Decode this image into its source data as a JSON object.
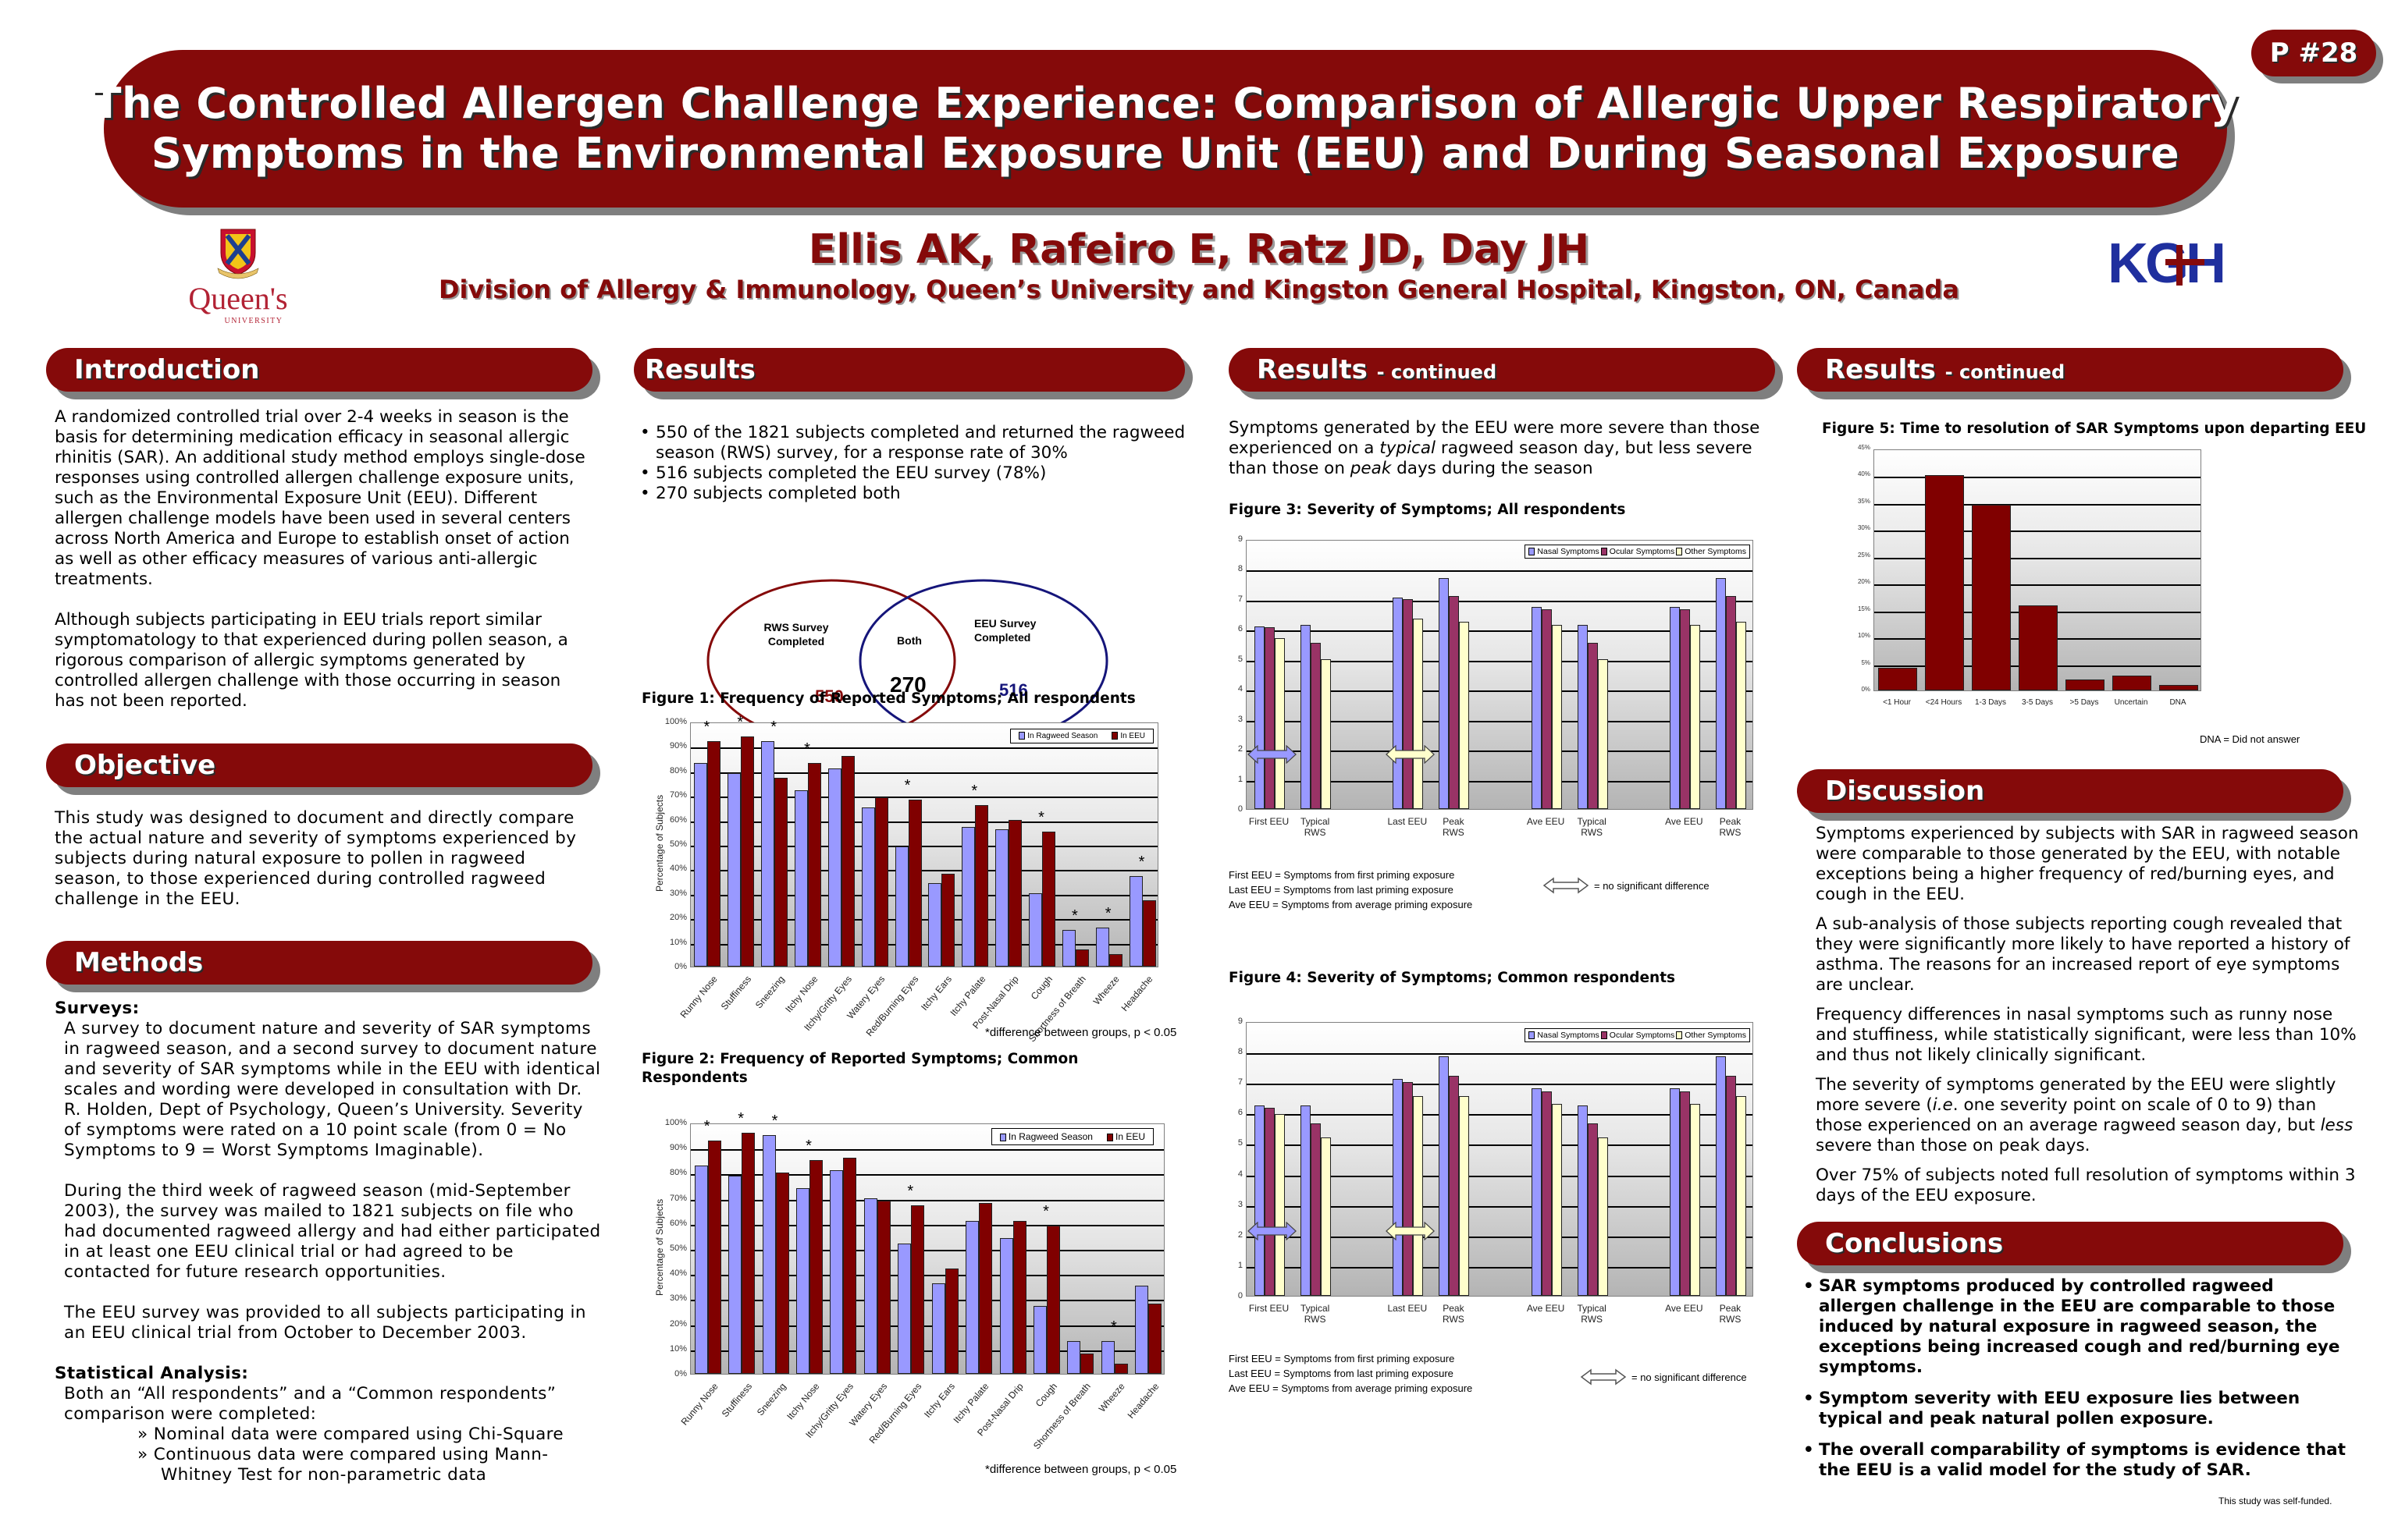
{
  "poster": {
    "badge": "P #28",
    "title_lines": [
      "The Controlled Allergen Challenge Experience: Comparison of Allergic Upper Respiratory",
      "Symptoms in the Environmental Exposure Unit (EEU) and During Seasonal Exposure"
    ],
    "authors": "Ellis AK, Rafeiro E, Ratz JD, Day JH",
    "affiliation": "Division of Allergy & Immunology, Queen’s University and Kingston General Hospital, Kingston, ON, Canada",
    "logos": {
      "left": {
        "name": "Queen's",
        "sub": "UNIVERSITY"
      },
      "right": {
        "text": "KGH"
      }
    },
    "colors": {
      "brand": "#850a0a",
      "shadow": "#7f7f7f",
      "series_light": "#9999ff",
      "series_dark": "#800000",
      "ocular": "#993366",
      "other": "#ffffcc"
    }
  },
  "introduction": {
    "heading": "Introduction",
    "paragraphs": [
      " A randomized controlled trial over 2-4 weeks in season is the basis for determining medication efficacy in seasonal allergic rhinitis (SAR). An additional study method employs single-dose responses using controlled allergen challenge exposure units, such as the Environmental Exposure Unit (EEU).  Different allergen challenge models have been used in several centers across North America and Europe to establish onset of action as well as other efficacy measures of various anti-allergic treatments.",
      " Although subjects participating in EEU trials report similar symptomatology to that experienced during pollen season, a rigorous comparison of allergic symptoms generated by controlled allergen challenge with those occurring in season has not been reported."
    ]
  },
  "objective": {
    "heading": "Objective",
    "text": " This study was designed to document and directly compare the actual nature and severity of symptoms experienced by subjects during natural exposure to pollen in ragweed season, to those experienced during controlled ragweed challenge in the EEU."
  },
  "methods": {
    "heading": "Methods",
    "surveys_heading": "Surveys:",
    "surveys_paragraphs": [
      " A survey to document nature and severity of SAR symptoms in ragweed season, and a second survey to document nature and severity of SAR symptoms while in the EEU with identical scales and wording were developed in consultation with Dr. R. Holden, Dept of Psychology, Queen’s University. Severity of symptoms were rated on a 10 point scale (from 0 = No Symptoms to 9 = Worst Symptoms Imaginable).",
      " During the third week of ragweed season (mid-September 2003), the survey was mailed to 1821 subjects on file who had documented ragweed allergy and had either participated in at least one EEU clinical trial or had agreed to be contacted for future research opportunities.",
      " The EEU survey was provided to all subjects participating in an EEU clinical trial from October to December 2003."
    ],
    "stats_heading": "Statistical Analysis:",
    "stats_intro": " Both an “All respondents” and a “Common respondents” comparison were completed:",
    "stats_items": [
      "» Nominal data were compared using Chi-Square",
      "» Continuous data were compared using Mann-Whitney Test for non-parametric data"
    ]
  },
  "results": {
    "heading": "Results",
    "bullets": [
      "550 of the 1821 subjects completed and returned the ragweed season (RWS) survey, for a response rate of 30%",
      "516 subjects completed the EEU survey (78%)",
      "270 subjects completed both"
    ],
    "venn": {
      "left_label": "RWS Survey Completed",
      "left_value": "550",
      "center_label": "Both",
      "center_value": "270",
      "right_label": "EEU Survey Completed",
      "right_value": "516"
    },
    "fig1_title": "Figure 1: Frequency of Reported Symptoms; All respondents",
    "fig2_title": "Figure 2: Frequency of Reported Symptoms; Common Respondents",
    "footnote": "*difference between groups, p < 0.05"
  },
  "results_continued": {
    "heading": "Results",
    "heading_suffix": "- continued",
    "intro_parts": [
      "Symptoms generated by the EEU were more severe than those experienced on a ",
      "typical",
      " ragweed season day, but less severe than those on ",
      "peak",
      " days during the season"
    ],
    "fig3_title": "Figure 3: Severity of Symptoms; All respondents",
    "fig4_title": "Figure 4: Severity of Symptoms; Common respondents",
    "definitions": [
      "First EEU = Symptoms from first priming exposure",
      "Last EEU = Symptoms from last priming exposure",
      "Ave EEU = Symptoms from average priming exposure"
    ],
    "arrow_note": "= no significant difference"
  },
  "results_continued_2": {
    "heading": "Results",
    "heading_suffix": "- continued",
    "fig5_title": "Figure 5: Time to resolution of SAR Symptoms upon departing EEU",
    "dna_note": "DNA = Did not answer"
  },
  "discussion": {
    "heading": "Discussion",
    "paragraphs": [
      " Symptoms experienced by subjects with SAR in ragweed season were comparable to those generated by the EEU, with notable exceptions being a higher frequency of red/burning eyes, and cough in the EEU.",
      "A sub-analysis of those subjects reporting cough revealed that they were significantly more likely to have reported a history of asthma. The reasons for an increased report of eye symptoms are unclear.",
      "Frequency differences in nasal symptoms such as runny nose and stuffiness, while statistically significant, were less than 10% and thus not likely clinically significant.",
      "Over 75% of subjects noted full resolution of symptoms within 3 days of the EEU exposure."
    ],
    "severity_parts": [
      "The severity of symptoms generated by the EEU were slightly more severe (",
      "i.e",
      ". one severity point on scale of 0 to 9) than those experienced on an average ragweed season day, but ",
      "less",
      " severe than those on peak days."
    ]
  },
  "conclusions": {
    "heading": "Conclusions",
    "bullets": [
      "SAR symptoms produced by controlled ragweed allergen challenge in the EEU are comparable to those induced by natural exposure in ragweed season, the exceptions being increased cough and red/burning eye symptoms.",
      "Symptom severity with EEU exposure lies between typical and peak natural pollen exposure.",
      "The overall comparability of symptoms is evidence that the EEU is a valid model for the study of SAR."
    ],
    "funding": "This study was self-funded."
  },
  "chart_data": [
    {
      "id": "fig1",
      "type": "bar",
      "title": "Figure 1: Frequency of Reported Symptoms; All respondents",
      "xlabel": "",
      "ylabel": "Percentage of Subjects",
      "ylim": [
        0,
        100
      ],
      "yticks": [
        "0%",
        "10%",
        "20%",
        "30%",
        "40%",
        "50%",
        "60%",
        "70%",
        "80%",
        "90%",
        "100%"
      ],
      "legend_position": "top-right",
      "categories": [
        "Runny Nose",
        "Stuffiness",
        "Sneezing",
        "Itchy Nose",
        "Itchy/Gritty Eyes",
        "Watery Eyes",
        "Red/Burning Eyes",
        "Itchy Ears",
        "Itchy Palate",
        "Post-Nasal Drip",
        "Cough",
        "Shortness of Breath",
        "Wheeze",
        "Headache"
      ],
      "series": [
        {
          "name": "In Ragweed Season",
          "color": "#9999ff",
          "values": [
            83,
            79,
            92,
            72,
            81,
            65,
            49,
            34,
            57,
            56,
            30,
            15,
            16,
            37
          ]
        },
        {
          "name": "In EEU",
          "color": "#800000",
          "values": [
            92,
            94,
            77,
            83,
            86,
            69,
            68,
            38,
            66,
            60,
            55,
            7,
            5,
            27
          ]
        }
      ],
      "significant": [
        true,
        true,
        true,
        true,
        false,
        false,
        true,
        false,
        true,
        false,
        true,
        true,
        true,
        true
      ],
      "annotation": "*difference between groups, p < 0.05"
    },
    {
      "id": "fig2",
      "type": "bar",
      "title": "Figure 2: Frequency of Reported Symptoms; Common Respondents",
      "xlabel": "",
      "ylabel": "Percentage of Subjects",
      "ylim": [
        0,
        100
      ],
      "yticks": [
        "0%",
        "10%",
        "20%",
        "30%",
        "40%",
        "50%",
        "60%",
        "70%",
        "80%",
        "90%",
        "100%"
      ],
      "legend_position": "top-right",
      "categories": [
        "Runny Nose",
        "Stuffiness",
        "Sneezing",
        "Itchy Nose",
        "Itchy/Gritty Eyes",
        "Watery Eyes",
        "Red/Burning Eyes",
        "Itchy Ears",
        "Itchy Palate",
        "Post-Nasal Drip",
        "Cough",
        "Shortness of Breath",
        "Wheeze",
        "Headache"
      ],
      "series": [
        {
          "name": "In Ragweed Season",
          "color": "#9999ff",
          "values": [
            83,
            79,
            95,
            74,
            81,
            70,
            52,
            36,
            61,
            54,
            27,
            13,
            13,
            35
          ]
        },
        {
          "name": "In EEU",
          "color": "#800000",
          "values": [
            93,
            96,
            80,
            85,
            86,
            69,
            67,
            42,
            68,
            61,
            59,
            8,
            4,
            28
          ]
        }
      ],
      "significant": [
        true,
        true,
        true,
        true,
        false,
        false,
        true,
        false,
        false,
        false,
        true,
        false,
        true,
        false
      ],
      "annotation": "*difference between groups, p < 0.05"
    },
    {
      "id": "fig3",
      "type": "bar",
      "title": "Figure 3: Severity of Symptoms; All respondents",
      "xlabel": "",
      "ylabel": "",
      "ylim": [
        0,
        9
      ],
      "yticks": [
        "0",
        "1",
        "2",
        "3",
        "4",
        "5",
        "6",
        "7",
        "8",
        "9"
      ],
      "legend_position": "top-right",
      "categories": [
        "First EEU",
        "Typical RWS",
        "",
        "Last EEU",
        "Peak RWS",
        "",
        "Ave EEU",
        "Typical RWS",
        "",
        "Ave EEU",
        "Peak RWS"
      ],
      "series": [
        {
          "name": "Nasal Symptoms",
          "color": "#9999ff",
          "values": [
            6.1,
            6.15,
            null,
            7.05,
            7.7,
            null,
            6.75,
            6.15,
            null,
            6.75,
            7.7
          ]
        },
        {
          "name": "Ocular Symptoms",
          "color": "#993366",
          "values": [
            6.05,
            5.55,
            null,
            7.0,
            7.1,
            null,
            6.65,
            5.55,
            null,
            6.65,
            7.1
          ]
        },
        {
          "name": "Other Symptoms",
          "color": "#ffffcc",
          "values": [
            5.7,
            5.0,
            null,
            6.35,
            6.25,
            null,
            6.15,
            5.0,
            null,
            6.15,
            6.25
          ]
        }
      ],
      "annotations": [
        "No significant difference: Nasal First EEU vs Typical RWS",
        "No significant difference: Other Last EEU vs Peak RWS"
      ]
    },
    {
      "id": "fig4",
      "type": "bar",
      "title": "Figure 4: Severity of Symptoms; Common respondents",
      "xlabel": "",
      "ylabel": "",
      "ylim": [
        0,
        9
      ],
      "yticks": [
        "0",
        "1",
        "2",
        "3",
        "4",
        "5",
        "6",
        "7",
        "8",
        "9"
      ],
      "legend_position": "top-right",
      "categories": [
        "First EEU",
        "Typical RWS",
        "",
        "Last EEU",
        "Peak RWS",
        "",
        "Ave EEU",
        "Typical RWS",
        "",
        "Ave EEU",
        "Peak RWS"
      ],
      "series": [
        {
          "name": "Nasal Symptoms",
          "color": "#9999ff",
          "values": [
            6.25,
            6.25,
            null,
            7.1,
            7.85,
            null,
            6.8,
            6.25,
            null,
            6.8,
            7.85
          ]
        },
        {
          "name": "Ocular Symptoms",
          "color": "#993366",
          "values": [
            6.15,
            5.65,
            null,
            7.0,
            7.2,
            null,
            6.7,
            5.65,
            null,
            6.7,
            7.2
          ]
        },
        {
          "name": "Other Symptoms",
          "color": "#ffffcc",
          "values": [
            5.95,
            5.2,
            null,
            6.55,
            6.55,
            null,
            6.3,
            5.2,
            null,
            6.3,
            6.55
          ]
        }
      ],
      "annotations": [
        "No significant difference: Nasal First EEU vs Typical RWS",
        "No significant difference: Other Last EEU vs Peak RWS"
      ]
    },
    {
      "id": "fig5",
      "type": "bar",
      "title": "Figure 5: Time to resolution of SAR Symptoms upon departing EEU",
      "xlabel": "",
      "ylabel": "",
      "ylim": [
        0,
        45
      ],
      "yticks": [
        "0%",
        "5%",
        "10%",
        "15%",
        "20%",
        "25%",
        "30%",
        "35%",
        "40%",
        "45%"
      ],
      "categories": [
        "<1 Hour",
        "<24 Hours",
        "1-3 Days",
        "3-5 Days",
        ">5 Days",
        "Uncertain",
        "DNA"
      ],
      "values": [
        4.2,
        40,
        34.5,
        15.8,
        2.1,
        2.7,
        1.0
      ],
      "color": "#800000",
      "annotation": "DNA = Did not answer"
    }
  ]
}
